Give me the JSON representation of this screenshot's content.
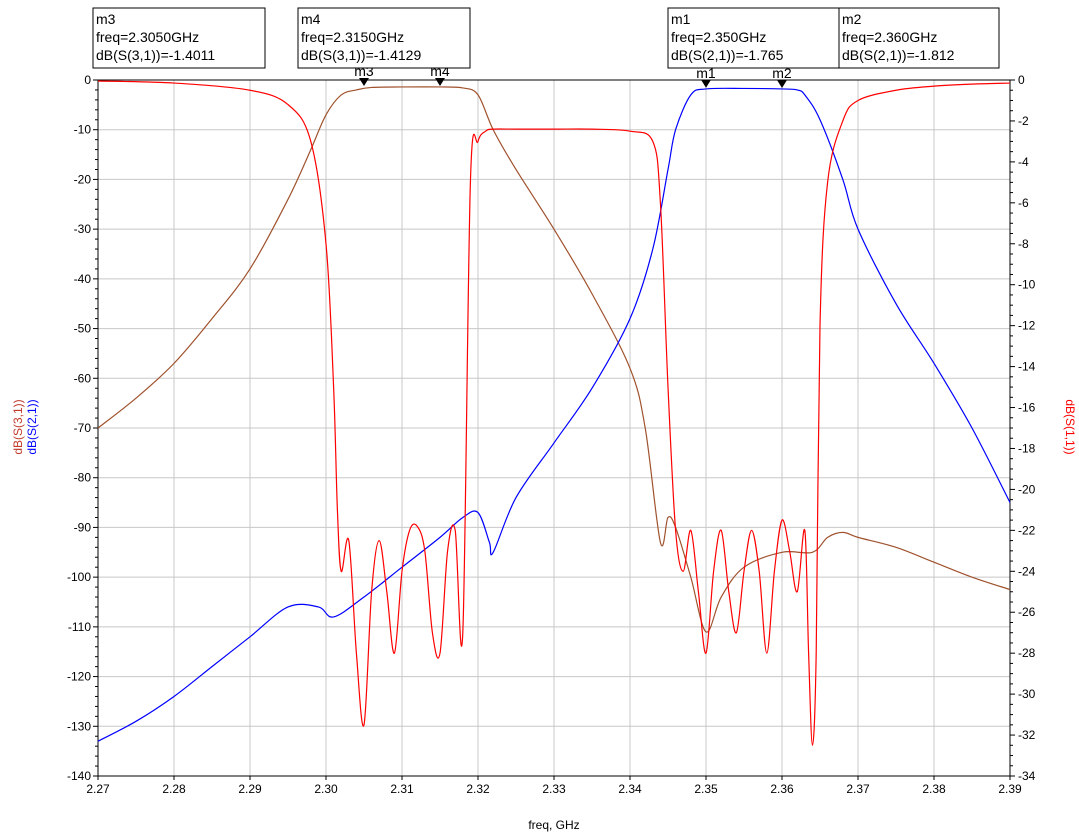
{
  "chart_data": {
    "type": "line",
    "xlabel": "freq, GHz",
    "xlim": [
      2.27,
      2.39
    ],
    "x_ticks": [
      "2.27",
      "2.28",
      "2.29",
      "2.30",
      "2.31",
      "2.32",
      "2.33",
      "2.34",
      "2.35",
      "2.36",
      "2.37",
      "2.38",
      "2.39"
    ],
    "left_axis": {
      "labels": [
        "dB(S(3,1))",
        "dB(S(2,1))"
      ],
      "label_colors": [
        "#c0392b",
        "#0000ff"
      ],
      "ylim": [
        -140,
        0
      ],
      "ticks": [
        "0",
        "-10",
        "-20",
        "-30",
        "-40",
        "-50",
        "-60",
        "-70",
        "-80",
        "-90",
        "-100",
        "-110",
        "-120",
        "-130",
        "-140"
      ]
    },
    "right_axis": {
      "label": "dB(S(1,1))",
      "label_color": "#ff0000",
      "ylim": [
        -34,
        0
      ],
      "ticks": [
        "0",
        "-2",
        "-4",
        "-6",
        "-8",
        "-10",
        "-12",
        "-14",
        "-16",
        "-18",
        "-20",
        "-22",
        "-24",
        "-26",
        "-28",
        "-30",
        "-32",
        "-34"
      ]
    },
    "grid": true,
    "series": [
      {
        "name": "dB(S(3,1))",
        "axis": "left",
        "color": "#a0522d",
        "x": [
          2.27,
          2.275,
          2.28,
          2.285,
          2.29,
          2.295,
          2.298,
          2.3,
          2.302,
          2.304,
          2.306,
          2.31,
          2.315,
          2.318,
          2.32,
          2.322,
          2.325,
          2.33,
          2.335,
          2.34,
          2.342,
          2.344,
          2.345,
          2.346,
          2.348,
          2.35,
          2.352,
          2.355,
          2.36,
          2.364,
          2.366,
          2.368,
          2.37,
          2.375,
          2.38,
          2.385,
          2.39
        ],
        "y": [
          -70,
          -64,
          -57,
          -48,
          -38,
          -24,
          -14,
          -7,
          -3,
          -2,
          -1.5,
          -1.4,
          -1.4,
          -1.6,
          -3,
          -10,
          -18,
          -30,
          -43,
          -58,
          -70,
          -93,
          -88,
          -90,
          -100,
          -111,
          -104,
          -98,
          -95,
          -95,
          -92,
          -91,
          -92,
          -94,
          -97,
          -100,
          -102.5
        ]
      },
      {
        "name": "dB(S(2,1))",
        "axis": "left",
        "color": "#0000ff",
        "x": [
          2.27,
          2.275,
          2.28,
          2.285,
          2.29,
          2.295,
          2.299,
          2.301,
          2.305,
          2.31,
          2.315,
          2.318,
          2.32,
          2.3215,
          2.322,
          2.325,
          2.33,
          2.335,
          2.34,
          2.343,
          2.345,
          2.346,
          2.348,
          2.35,
          2.355,
          2.36,
          2.362,
          2.363,
          2.365,
          2.368,
          2.37,
          2.375,
          2.38,
          2.385,
          2.39
        ],
        "y": [
          -133,
          -129,
          -124,
          -118,
          -112,
          -106,
          -106,
          -108,
          -104,
          -98,
          -92,
          -88,
          -87,
          -93,
          -95,
          -84,
          -73,
          -62,
          -48,
          -34,
          -18,
          -10,
          -3,
          -1.8,
          -1.7,
          -1.8,
          -2,
          -3,
          -8,
          -20,
          -30,
          -45,
          -57,
          -70,
          -85
        ]
      },
      {
        "name": "dB(S(1,1))",
        "axis": "right",
        "color": "#ff0000",
        "x": [
          2.27,
          2.28,
          2.29,
          2.295,
          2.298,
          2.3,
          2.301,
          2.3015,
          2.302,
          2.303,
          2.304,
          2.305,
          2.306,
          2.307,
          2.308,
          2.309,
          2.31,
          2.311,
          2.312,
          2.313,
          2.314,
          2.315,
          2.316,
          2.317,
          2.318,
          2.319,
          2.32,
          2.321,
          2.322,
          2.325,
          2.33,
          2.335,
          2.34,
          2.343,
          2.344,
          2.345,
          2.346,
          2.347,
          2.348,
          2.349,
          2.35,
          2.351,
          2.352,
          2.353,
          2.354,
          2.355,
          2.356,
          2.357,
          2.358,
          2.359,
          2.36,
          2.361,
          2.362,
          2.363,
          2.3635,
          2.364,
          2.3645,
          2.365,
          2.366,
          2.368,
          2.37,
          2.375,
          2.38,
          2.385,
          2.39
        ],
        "y": [
          -0.05,
          -0.15,
          -0.5,
          -1.2,
          -3,
          -8,
          -15,
          -21,
          -24,
          -22.5,
          -28,
          -31.5,
          -25,
          -22.5,
          -25,
          -28,
          -24,
          -22,
          -21.8,
          -23,
          -27,
          -28,
          -23,
          -22,
          -27,
          -5,
          -3,
          -2.5,
          -2.4,
          -2.4,
          -2.4,
          -2.4,
          -2.5,
          -3,
          -6,
          -15,
          -22,
          -24,
          -22,
          -25,
          -28,
          -24,
          -22,
          -25,
          -27,
          -24,
          -22,
          -24,
          -28,
          -24,
          -21.5,
          -23,
          -25,
          -22,
          -28,
          -32.5,
          -28,
          -12,
          -5,
          -2,
          -1,
          -0.5,
          -0.3,
          -0.2,
          -0.15
        ]
      }
    ],
    "markers": [
      {
        "id": "m3",
        "series": "dB(S(3,1))",
        "x": 2.305,
        "y": -1.4011,
        "label": "m3",
        "box": [
          "m3",
          "freq=2.3050GHz",
          "dB(S(3,1))=-1.4011"
        ]
      },
      {
        "id": "m4",
        "series": "dB(S(3,1))",
        "x": 2.315,
        "y": -1.4129,
        "label": "m4",
        "box": [
          "m4",
          "freq=2.3150GHz",
          "dB(S(3,1))=-1.4129"
        ]
      },
      {
        "id": "m1",
        "series": "dB(S(2,1))",
        "x": 2.35,
        "y": -1.765,
        "label": "m1",
        "box": [
          "m1",
          "freq=2.350GHz",
          "dB(S(2,1))=-1.765"
        ]
      },
      {
        "id": "m2",
        "series": "dB(S(2,1))",
        "x": 2.36,
        "y": -1.812,
        "label": "m2",
        "box": [
          "m2",
          "freq=2.360GHz",
          "dB(S(2,1))=-1.812"
        ]
      }
    ]
  }
}
